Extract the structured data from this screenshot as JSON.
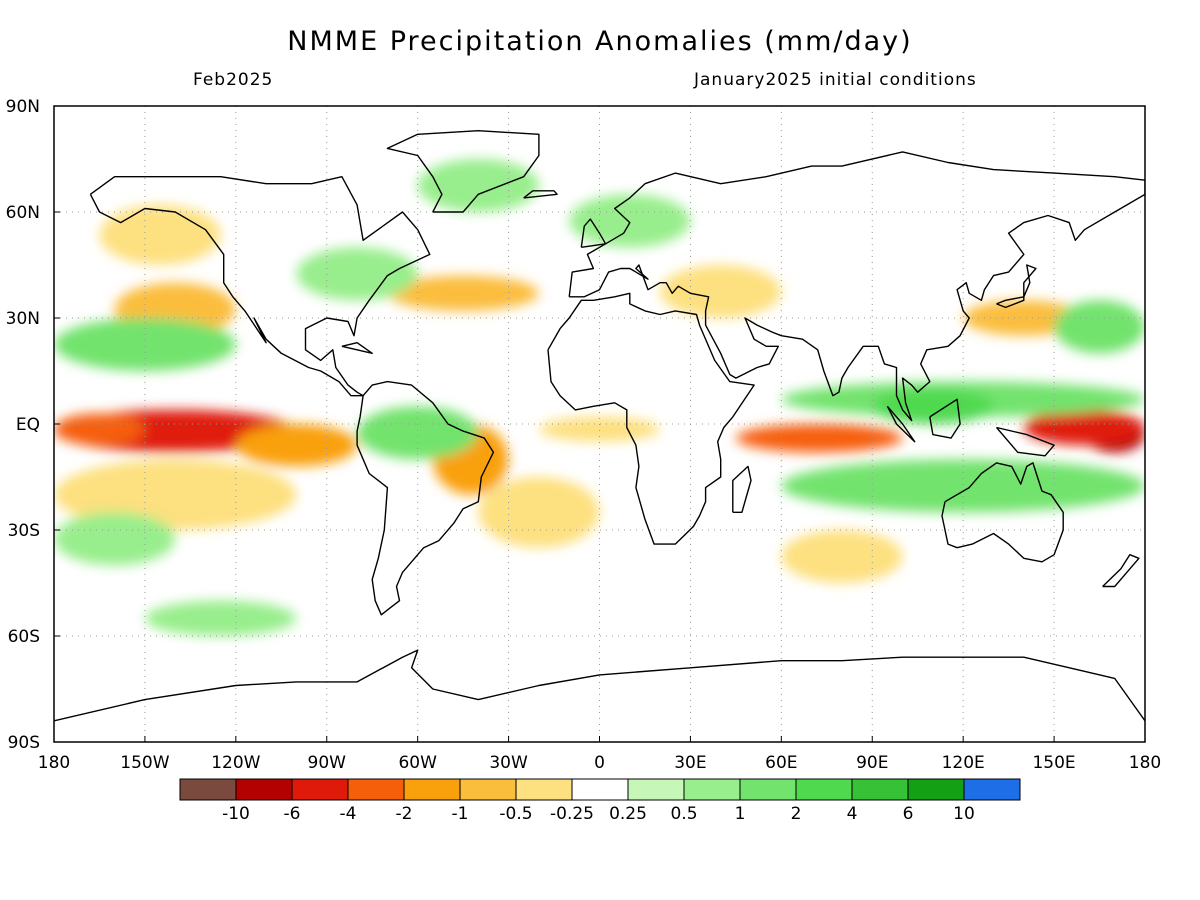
{
  "title": "NMME Precipitation Anomalies (mm/day)",
  "subtitle_left": "Feb2025",
  "subtitle_right": "January2025 initial conditions",
  "map": {
    "lon_range": [
      -180,
      180
    ],
    "lat_range": [
      -90,
      90
    ],
    "x_ticks": [
      {
        "value": -180,
        "label": "180"
      },
      {
        "value": -150,
        "label": "150W"
      },
      {
        "value": -120,
        "label": "120W"
      },
      {
        "value": -90,
        "label": "90W"
      },
      {
        "value": -60,
        "label": "60W"
      },
      {
        "value": -30,
        "label": "30W"
      },
      {
        "value": 0,
        "label": "0"
      },
      {
        "value": 30,
        "label": "30E"
      },
      {
        "value": 60,
        "label": "60E"
      },
      {
        "value": 90,
        "label": "90E"
      },
      {
        "value": 120,
        "label": "120E"
      },
      {
        "value": 150,
        "label": "150E"
      },
      {
        "value": 180,
        "label": "180"
      }
    ],
    "y_ticks": [
      {
        "value": 90,
        "label": "90N"
      },
      {
        "value": 60,
        "label": "60N"
      },
      {
        "value": 30,
        "label": "30N"
      },
      {
        "value": 0,
        "label": "EQ"
      },
      {
        "value": -30,
        "label": "30S"
      },
      {
        "value": -60,
        "label": "60S"
      },
      {
        "value": -90,
        "label": "90S"
      }
    ],
    "grid": "dotted"
  },
  "colorbar": {
    "colors": [
      "#7a4a3e",
      "#b30000",
      "#e01a0a",
      "#f65f0a",
      "#f9a00d",
      "#fbbd3c",
      "#fde07f",
      "#ffffff",
      "#c6f7b8",
      "#98ee8c",
      "#72e36d",
      "#4fd94f",
      "#36c136",
      "#14a014",
      "#1e6ee8"
    ],
    "labels": [
      "-10",
      "-6",
      "-4",
      "-2",
      "-1",
      "-0.5",
      "-0.25",
      "0.25",
      "0.5",
      "1",
      "2",
      "4",
      "6",
      "10"
    ]
  },
  "anomaly_regions": [
    {
      "level": 2,
      "lon": [
        -180,
        -100
      ],
      "lat": [
        -8,
        4
      ]
    },
    {
      "level": 3,
      "lon": [
        -180,
        -150
      ],
      "lat": [
        -6,
        3
      ]
    },
    {
      "level": 1,
      "lon": [
        160,
        180
      ],
      "lat": [
        -8,
        2
      ]
    },
    {
      "level": 2,
      "lon": [
        140,
        180
      ],
      "lat": [
        -6,
        4
      ]
    },
    {
      "level": 3,
      "lon": [
        45,
        100
      ],
      "lat": [
        -8,
        0
      ]
    },
    {
      "level": 3,
      "lon": [
        -50,
        -35
      ],
      "lat": [
        -16,
        -5
      ]
    },
    {
      "level": 4,
      "lon": [
        -120,
        -80
      ],
      "lat": [
        -12,
        0
      ]
    },
    {
      "level": 4,
      "lon": [
        -55,
        -30
      ],
      "lat": [
        -20,
        0
      ]
    },
    {
      "level": 5,
      "lon": [
        -70,
        -20
      ],
      "lat": [
        32,
        42
      ]
    },
    {
      "level": 5,
      "lon": [
        -160,
        -120
      ],
      "lat": [
        25,
        40
      ]
    },
    {
      "level": 5,
      "lon": [
        120,
        160
      ],
      "lat": [
        25,
        35
      ]
    },
    {
      "level": 6,
      "lon": [
        -180,
        -100
      ],
      "lat": [
        -30,
        -10
      ]
    },
    {
      "level": 6,
      "lon": [
        -20,
        20
      ],
      "lat": [
        -5,
        2
      ]
    },
    {
      "level": 6,
      "lon": [
        20,
        60
      ],
      "lat": [
        30,
        45
      ]
    },
    {
      "level": 6,
      "lon": [
        -40,
        0
      ],
      "lat": [
        -35,
        -15
      ]
    },
    {
      "level": 6,
      "lon": [
        60,
        100
      ],
      "lat": [
        -45,
        -30
      ]
    },
    {
      "level": 6,
      "lon": [
        -165,
        -125
      ],
      "lat": [
        45,
        62
      ]
    },
    {
      "level": 10,
      "lon": [
        -180,
        -120
      ],
      "lat": [
        15,
        30
      ]
    },
    {
      "level": 10,
      "lon": [
        -80,
        -40
      ],
      "lat": [
        -10,
        5
      ]
    },
    {
      "level": 10,
      "lon": [
        60,
        180
      ],
      "lat": [
        2,
        12
      ]
    },
    {
      "level": 10,
      "lon": [
        60,
        180
      ],
      "lat": [
        -25,
        -10
      ]
    },
    {
      "level": 10,
      "lon": [
        150,
        180
      ],
      "lat": [
        20,
        35
      ]
    },
    {
      "level": 11,
      "lon": [
        90,
        130
      ],
      "lat": [
        0,
        10
      ]
    },
    {
      "level": 9,
      "lon": [
        -10,
        30
      ],
      "lat": [
        50,
        65
      ]
    },
    {
      "level": 9,
      "lon": [
        -100,
        -60
      ],
      "lat": [
        35,
        50
      ]
    },
    {
      "level": 9,
      "lon": [
        -180,
        -140
      ],
      "lat": [
        -40,
        -25
      ]
    },
    {
      "level": 9,
      "lon": [
        -150,
        -100
      ],
      "lat": [
        -60,
        -50
      ]
    },
    {
      "level": 9,
      "lon": [
        -60,
        -20
      ],
      "lat": [
        60,
        75
      ]
    }
  ],
  "coastlines": [
    [
      [
        -168,
        65
      ],
      [
        -160,
        70
      ],
      [
        -140,
        70
      ],
      [
        -125,
        70
      ],
      [
        -110,
        68
      ],
      [
        -95,
        68
      ],
      [
        -85,
        70
      ],
      [
        -80,
        62
      ],
      [
        -78,
        52
      ],
      [
        -65,
        60
      ],
      [
        -60,
        55
      ],
      [
        -56,
        48
      ],
      [
        -66,
        44
      ],
      [
        -70,
        42
      ],
      [
        -76,
        35
      ],
      [
        -80,
        30
      ],
      [
        -81,
        25
      ],
      [
        -83,
        29
      ],
      [
        -90,
        30
      ],
      [
        -97,
        27
      ],
      [
        -97,
        21
      ],
      [
        -92,
        18
      ],
      [
        -88,
        21
      ],
      [
        -87,
        16
      ],
      [
        -83,
        11
      ],
      [
        -80,
        9
      ],
      [
        -78,
        8
      ],
      [
        -82,
        8
      ],
      [
        -86,
        12
      ],
      [
        -92,
        15
      ],
      [
        -96,
        16
      ],
      [
        -105,
        20
      ],
      [
        -110,
        24
      ],
      [
        -114,
        30
      ],
      [
        -110,
        23
      ],
      [
        -117,
        32
      ],
      [
        -121,
        36
      ],
      [
        -124,
        40
      ],
      [
        -124,
        48
      ],
      [
        -130,
        55
      ],
      [
        -140,
        60
      ],
      [
        -150,
        61
      ],
      [
        -158,
        57
      ],
      [
        -165,
        60
      ],
      [
        -168,
        65
      ]
    ],
    [
      [
        -78,
        8
      ],
      [
        -75,
        11
      ],
      [
        -70,
        12
      ],
      [
        -62,
        11
      ],
      [
        -55,
        6
      ],
      [
        -50,
        0
      ],
      [
        -45,
        -2
      ],
      [
        -38,
        -4
      ],
      [
        -35,
        -8
      ],
      [
        -39,
        -15
      ],
      [
        -40,
        -22
      ],
      [
        -45,
        -24
      ],
      [
        -48,
        -28
      ],
      [
        -53,
        -33
      ],
      [
        -58,
        -35
      ],
      [
        -62,
        -39
      ],
      [
        -65,
        -42
      ],
      [
        -67,
        -46
      ],
      [
        -66,
        -50
      ],
      [
        -69,
        -52
      ],
      [
        -72,
        -54
      ],
      [
        -74,
        -50
      ],
      [
        -75,
        -44
      ],
      [
        -73,
        -38
      ],
      [
        -71,
        -30
      ],
      [
        -70,
        -18
      ],
      [
        -76,
        -14
      ],
      [
        -80,
        -6
      ],
      [
        -80,
        -2
      ],
      [
        -79,
        2
      ],
      [
        -78,
        8
      ]
    ],
    [
      [
        -17,
        21
      ],
      [
        -16,
        12
      ],
      [
        -13,
        8
      ],
      [
        -8,
        4
      ],
      [
        -2,
        5
      ],
      [
        5,
        6
      ],
      [
        9,
        4
      ],
      [
        9,
        -1
      ],
      [
        12,
        -6
      ],
      [
        13,
        -12
      ],
      [
        12,
        -18
      ],
      [
        15,
        -27
      ],
      [
        18,
        -34
      ],
      [
        25,
        -34
      ],
      [
        31,
        -29
      ],
      [
        33,
        -26
      ],
      [
        35,
        -22
      ],
      [
        35,
        -18
      ],
      [
        40,
        -15
      ],
      [
        40,
        -10
      ],
      [
        39,
        -5
      ],
      [
        41,
        -1
      ],
      [
        44,
        2
      ],
      [
        51,
        11
      ],
      [
        43,
        12
      ],
      [
        38,
        18
      ],
      [
        33,
        28
      ],
      [
        32,
        31
      ],
      [
        25,
        32
      ],
      [
        20,
        31
      ],
      [
        15,
        32
      ],
      [
        10,
        34
      ],
      [
        10,
        37
      ],
      [
        5,
        36
      ],
      [
        -2,
        35
      ],
      [
        -6,
        35
      ],
      [
        -10,
        30
      ],
      [
        -13,
        27
      ],
      [
        -17,
        21
      ]
    ],
    [
      [
        -10,
        36
      ],
      [
        -9,
        43
      ],
      [
        -2,
        44
      ],
      [
        -4,
        48
      ],
      [
        2,
        51
      ],
      [
        8,
        54
      ],
      [
        10,
        57
      ],
      [
        5,
        61
      ],
      [
        10,
        64
      ],
      [
        15,
        68
      ],
      [
        25,
        71
      ],
      [
        40,
        68
      ],
      [
        55,
        70
      ],
      [
        70,
        73
      ],
      [
        80,
        73
      ],
      [
        100,
        77
      ],
      [
        115,
        74
      ],
      [
        130,
        72
      ],
      [
        150,
        71
      ],
      [
        170,
        70
      ],
      [
        180,
        69
      ],
      [
        180,
        65
      ],
      [
        170,
        60
      ],
      [
        160,
        55
      ],
      [
        157,
        52
      ],
      [
        155,
        57
      ],
      [
        148,
        59
      ],
      [
        140,
        57
      ],
      [
        135,
        54
      ],
      [
        140,
        48
      ],
      [
        135,
        43
      ],
      [
        130,
        42
      ],
      [
        127,
        38
      ],
      [
        126,
        35
      ],
      [
        122,
        37
      ],
      [
        121,
        40
      ],
      [
        118,
        38
      ],
      [
        120,
        32
      ],
      [
        122,
        30
      ],
      [
        119,
        25
      ],
      [
        115,
        22
      ],
      [
        108,
        21
      ],
      [
        106,
        17
      ],
      [
        109,
        12
      ],
      [
        105,
        9
      ],
      [
        103,
        11
      ],
      [
        100,
        13
      ],
      [
        101,
        6
      ],
      [
        103,
        1
      ],
      [
        100,
        4
      ],
      [
        98,
        8
      ],
      [
        98,
        16
      ],
      [
        94,
        17
      ],
      [
        92,
        22
      ],
      [
        87,
        22
      ],
      [
        82,
        16
      ],
      [
        80,
        13
      ],
      [
        79,
        9
      ],
      [
        77,
        8
      ],
      [
        74,
        15
      ],
      [
        72,
        21
      ],
      [
        67,
        24
      ],
      [
        60,
        25
      ],
      [
        57,
        26
      ],
      [
        52,
        28
      ],
      [
        48,
        30
      ],
      [
        51,
        24
      ],
      [
        55,
        22
      ],
      [
        59,
        22
      ],
      [
        56,
        17
      ],
      [
        52,
        16
      ],
      [
        45,
        13
      ],
      [
        43,
        14
      ],
      [
        40,
        20
      ],
      [
        35,
        28
      ],
      [
        35,
        32
      ],
      [
        36,
        36
      ],
      [
        30,
        37
      ],
      [
        26,
        39
      ],
      [
        24,
        37
      ],
      [
        22,
        40
      ],
      [
        20,
        40
      ],
      [
        16,
        38
      ],
      [
        13,
        45
      ],
      [
        12,
        44
      ],
      [
        16,
        41
      ],
      [
        10,
        44
      ],
      [
        7,
        44
      ],
      [
        3,
        43
      ],
      [
        0,
        38
      ],
      [
        -5,
        36
      ],
      [
        -10,
        36
      ]
    ],
    [
      [
        114,
        -22
      ],
      [
        113,
        -26
      ],
      [
        115,
        -34
      ],
      [
        118,
        -35
      ],
      [
        123,
        -34
      ],
      [
        130,
        -31
      ],
      [
        135,
        -34
      ],
      [
        140,
        -38
      ],
      [
        146,
        -39
      ],
      [
        150,
        -37
      ],
      [
        153,
        -30
      ],
      [
        153,
        -25
      ],
      [
        149,
        -20
      ],
      [
        146,
        -19
      ],
      [
        143,
        -11
      ],
      [
        141,
        -12
      ],
      [
        139,
        -17
      ],
      [
        136,
        -12
      ],
      [
        131,
        -11
      ],
      [
        126,
        -14
      ],
      [
        122,
        -18
      ],
      [
        114,
        -22
      ]
    ],
    [
      [
        -180,
        -84
      ],
      [
        -150,
        -78
      ],
      [
        -120,
        -74
      ],
      [
        -100,
        -73
      ],
      [
        -80,
        -73
      ],
      [
        -65,
        -66
      ],
      [
        -60,
        -64
      ],
      [
        -62,
        -69
      ],
      [
        -55,
        -75
      ],
      [
        -40,
        -78
      ],
      [
        -20,
        -74
      ],
      [
        0,
        -71
      ],
      [
        30,
        -69
      ],
      [
        60,
        -67
      ],
      [
        80,
        -67
      ],
      [
        100,
        -66
      ],
      [
        120,
        -66
      ],
      [
        140,
        -66
      ],
      [
        160,
        -70
      ],
      [
        170,
        -72
      ],
      [
        180,
        -84
      ]
    ],
    [
      [
        -55,
        60
      ],
      [
        -45,
        60
      ],
      [
        -40,
        65
      ],
      [
        -25,
        70
      ],
      [
        -20,
        76
      ],
      [
        -20,
        82
      ],
      [
        -40,
        83
      ],
      [
        -60,
        82
      ],
      [
        -70,
        78
      ],
      [
        -60,
        76
      ],
      [
        -55,
        70
      ],
      [
        -52,
        65
      ],
      [
        -55,
        60
      ]
    ],
    [
      [
        44,
        -25
      ],
      [
        47,
        -25
      ],
      [
        50,
        -16
      ],
      [
        49,
        -12
      ],
      [
        44,
        -16
      ],
      [
        44,
        -25
      ]
    ],
    [
      [
        95,
        5
      ],
      [
        100,
        0
      ],
      [
        104,
        -5
      ],
      [
        98,
        0
      ],
      [
        95,
        5
      ]
    ],
    [
      [
        109,
        2
      ],
      [
        118,
        7
      ],
      [
        119,
        0
      ],
      [
        116,
        -4
      ],
      [
        110,
        -3
      ],
      [
        109,
        2
      ]
    ],
    [
      [
        131,
        34
      ],
      [
        134,
        35
      ],
      [
        140,
        36
      ],
      [
        142,
        40
      ],
      [
        141,
        45
      ],
      [
        144,
        44
      ],
      [
        140,
        40
      ],
      [
        140,
        35
      ],
      [
        134,
        33
      ],
      [
        131,
        34
      ]
    ],
    [
      [
        -6,
        50
      ],
      [
        2,
        51
      ],
      [
        0,
        54
      ],
      [
        -3,
        58
      ],
      [
        -5,
        56
      ],
      [
        -6,
        50
      ]
    ],
    [
      [
        131,
        -1
      ],
      [
        141,
        -3
      ],
      [
        150,
        -6
      ],
      [
        147,
        -9
      ],
      [
        138,
        -8
      ],
      [
        131,
        -1
      ]
    ],
    [
      [
        166,
        -46
      ],
      [
        172,
        -41
      ],
      [
        175,
        -37
      ],
      [
        178,
        -38
      ],
      [
        174,
        -42
      ],
      [
        170,
        -46
      ],
      [
        166,
        -46
      ]
    ],
    [
      [
        -25,
        64
      ],
      [
        -14,
        65
      ],
      [
        -15,
        66
      ],
      [
        -22,
        66
      ],
      [
        -25,
        64
      ]
    ],
    [
      [
        -85,
        22
      ],
      [
        -75,
        20
      ],
      [
        -80,
        23
      ],
      [
        -85,
        22
      ]
    ]
  ]
}
